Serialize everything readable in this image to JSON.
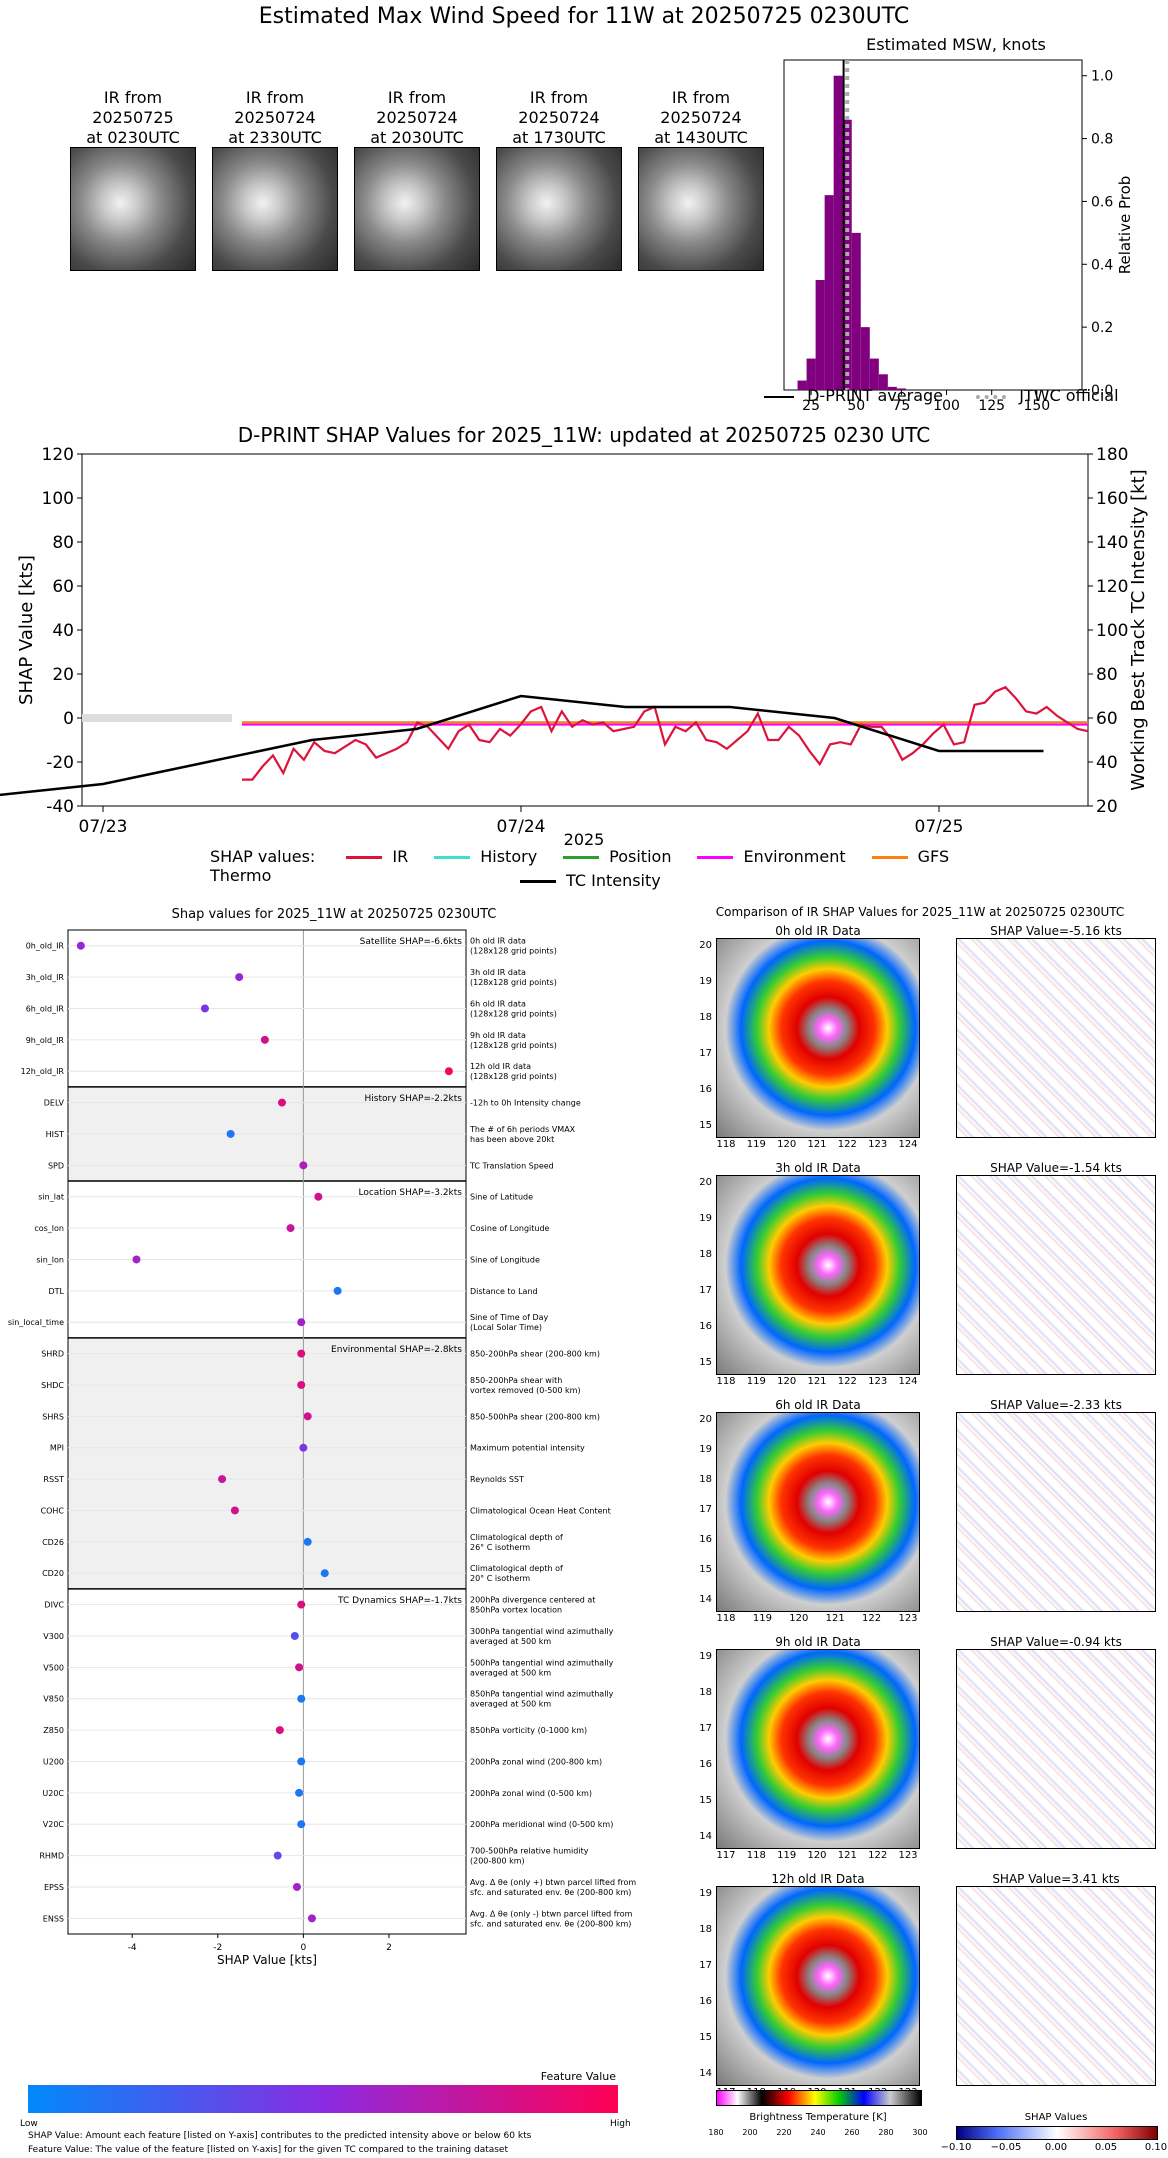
{
  "main_title": "Estimated Max Wind Speed for 11W at 20250725 0230UTC",
  "ir_thumbs": [
    {
      "line1": "IR from",
      "line2": "20250725",
      "line3": "at 0230UTC"
    },
    {
      "line1": "IR from",
      "line2": "20250724",
      "line3": "at 2330UTC"
    },
    {
      "line1": "IR from",
      "line2": "20250724",
      "line3": "at 2030UTC"
    },
    {
      "line1": "IR from",
      "line2": "20250724",
      "line3": "at 1730UTC"
    },
    {
      "line1": "IR from",
      "line2": "20250724",
      "line3": "at 1430UTC"
    }
  ],
  "msw": {
    "title": "Estimated MSW, knots",
    "ylabel": "Relative Prob",
    "legend_avg": "D-PRINT average",
    "legend_jtwc": "JTWC official",
    "xticks": [
      "25",
      "50",
      "75",
      "100",
      "125",
      "150"
    ],
    "yticks": [
      "0.0",
      "0.2",
      "0.4",
      "0.6",
      "0.8",
      "1.0"
    ]
  },
  "ts": {
    "title": "D-PRINT SHAP Values for 2025_11W: updated at 20250725 0230 UTC",
    "ylabel_left": "SHAP Value [kts]",
    "ylabel_right": "Working Best Track TC Intensity [kt]",
    "xlabel": "2025",
    "xticks": [
      "07/23",
      "07/24",
      "07/25"
    ],
    "yticks_left": [
      "120",
      "100",
      "80",
      "60",
      "40",
      "20",
      "0",
      "-20",
      "-40"
    ],
    "yticks_right": [
      "180",
      "160",
      "140",
      "120",
      "100",
      "80",
      "60",
      "40",
      "20"
    ],
    "legend_title": "SHAP values:",
    "legend_items": [
      "IR",
      "History",
      "Position",
      "Environment",
      "GFS Thermo",
      "TC Intensity"
    ]
  },
  "shap_panel": {
    "title": "Shap values for 2025_11W at 20250725 0230UTC",
    "xlabel": "SHAP Value [kts]",
    "xticks": [
      "-4",
      "-2",
      "0",
      "2"
    ],
    "group_labels": [
      "Satellite SHAP=-6.6kts",
      "History SHAP=-2.2kts",
      "Location SHAP=-3.2kts",
      "Environmental SHAP=-2.8kts",
      "TC Dynamics SHAP=-1.7kts"
    ],
    "features": [
      {
        "name": "0h_old_IR",
        "desc1": "0h old IR data",
        "desc2": "(128x128 grid points)"
      },
      {
        "name": "3h_old_IR",
        "desc1": "3h old IR data",
        "desc2": "(128x128 grid points)"
      },
      {
        "name": "6h_old_IR",
        "desc1": "6h old IR data",
        "desc2": "(128x128 grid points)"
      },
      {
        "name": "9h_old_IR",
        "desc1": "9h old IR data",
        "desc2": "(128x128 grid points)"
      },
      {
        "name": "12h_old_IR",
        "desc1": "12h old IR data",
        "desc2": "(128x128 grid points)"
      },
      {
        "name": "DELV",
        "desc1": "-12h to 0h Intensity change",
        "desc2": ""
      },
      {
        "name": "HIST",
        "desc1": "The # of 6h periods VMAX",
        "desc2": "has been above 20kt"
      },
      {
        "name": "SPD",
        "desc1": "TC Translation Speed",
        "desc2": ""
      },
      {
        "name": "sin_lat",
        "desc1": "Sine of Latitude",
        "desc2": ""
      },
      {
        "name": "cos_lon",
        "desc1": "Cosine of Longitude",
        "desc2": ""
      },
      {
        "name": "sin_lon",
        "desc1": "Sine of Longitude",
        "desc2": ""
      },
      {
        "name": "DTL",
        "desc1": "Distance to Land",
        "desc2": ""
      },
      {
        "name": "sin_local_time",
        "desc1": "Sine of Time of Day",
        "desc2": "(Local Solar Time)"
      },
      {
        "name": "SHRD",
        "desc1": "850-200hPa shear (200-800 km)",
        "desc2": ""
      },
      {
        "name": "SHDC",
        "desc1": "850-200hPa shear with",
        "desc2": "vortex removed (0-500 km)"
      },
      {
        "name": "SHRS",
        "desc1": "850-500hPa shear (200-800 km)",
        "desc2": ""
      },
      {
        "name": "MPI",
        "desc1": "Maximum potential intensity",
        "desc2": ""
      },
      {
        "name": "RSST",
        "desc1": "Reynolds SST",
        "desc2": ""
      },
      {
        "name": "COHC",
        "desc1": "Climatological Ocean Heat Content",
        "desc2": ""
      },
      {
        "name": "CD26",
        "desc1": "Climatological depth of",
        "desc2": "26° C isotherm"
      },
      {
        "name": "CD20",
        "desc1": "Climatological depth of",
        "desc2": "20° C isotherm"
      },
      {
        "name": "DIVC",
        "desc1": "200hPa divergence centered at",
        "desc2": "850hPa vortex location"
      },
      {
        "name": "V300",
        "desc1": "300hPa tangential wind azimuthally",
        "desc2": "averaged at 500 km"
      },
      {
        "name": "V500",
        "desc1": "500hPa tangential wind azimuthally",
        "desc2": "averaged at 500 km"
      },
      {
        "name": "V850",
        "desc1": "850hPa tangential wind azimuthally",
        "desc2": "averaged at 500 km"
      },
      {
        "name": "Z850",
        "desc1": "850hPa vorticity (0-1000 km)",
        "desc2": ""
      },
      {
        "name": "U200",
        "desc1": "200hPa zonal wind (200-800 km)",
        "desc2": ""
      },
      {
        "name": "U20C",
        "desc1": "200hPa zonal wind (0-500 km)",
        "desc2": ""
      },
      {
        "name": "V20C",
        "desc1": "200hPa meridional wind (0-500 km)",
        "desc2": ""
      },
      {
        "name": "RHMD",
        "desc1": "700-500hPa relative humidity",
        "desc2": "(200-800 km)"
      },
      {
        "name": "EPSS",
        "desc1": "Avg. Δ θe (only +) btwn parcel lifted from",
        "desc2": "sfc. and saturated env. θe (200-800 km)"
      },
      {
        "name": "ENSS",
        "desc1": "Avg. Δ θe (only -) btwn parcel lifted from",
        "desc2": "sfc. and saturated env. θe (200-800 km)"
      }
    ],
    "colorbar_title": "Feature Value",
    "colorbar_low": "Low",
    "colorbar_high": "High",
    "note1": "SHAP Value: Amount each feature [listed on Y-axis] contributes to the predicted intensity above or below 60 kts",
    "note2": "Feature Value: The value of the feature [listed on Y-axis] for the given TC compared to the training dataset"
  },
  "ir_compare": {
    "title": "Comparison of IR SHAP Values for 2025_11W at 20250725 0230UTC",
    "rows": [
      {
        "ir_title": "0h old IR Data",
        "shap_title": "SHAP Value=-5.16 kts",
        "yticks": [
          "20",
          "19",
          "18",
          "17",
          "16",
          "15"
        ],
        "xticks": [
          "118",
          "119",
          "120",
          "121",
          "122",
          "123",
          "124"
        ]
      },
      {
        "ir_title": "3h old IR Data",
        "shap_title": "SHAP Value=-1.54 kts",
        "yticks": [
          "20",
          "19",
          "18",
          "17",
          "16",
          "15"
        ],
        "xticks": [
          "118",
          "119",
          "120",
          "121",
          "122",
          "123",
          "124"
        ]
      },
      {
        "ir_title": "6h old IR Data",
        "shap_title": "SHAP Value=-2.33 kts",
        "yticks": [
          "20",
          "19",
          "18",
          "17",
          "16",
          "15",
          "14"
        ],
        "xticks": [
          "118",
          "119",
          "120",
          "121",
          "122",
          "123"
        ]
      },
      {
        "ir_title": "9h old IR Data",
        "shap_title": "SHAP Value=-0.94 kts",
        "yticks": [
          "19",
          "18",
          "17",
          "16",
          "15",
          "14"
        ],
        "xticks": [
          "117",
          "118",
          "119",
          "120",
          "121",
          "122",
          "123"
        ]
      },
      {
        "ir_title": "12h old IR Data",
        "shap_title": "SHAP Value=3.41 kts",
        "yticks": [
          "19",
          "18",
          "17",
          "16",
          "15",
          "14"
        ],
        "xticks": [
          "117",
          "118",
          "119",
          "120",
          "121",
          "122",
          "123"
        ]
      }
    ],
    "bt_label": "Brightness Temperature [K]",
    "bt_ticks": [
      "180",
      "200",
      "220",
      "240",
      "260",
      "280",
      "300"
    ],
    "sv_label": "SHAP Values",
    "sv_ticks": [
      "−0.10",
      "−0.05",
      "0.00",
      "0.05",
      "0.10"
    ]
  },
  "chart_data": [
    {
      "type": "bar",
      "title": "Estimated MSW, knots",
      "ylabel": "Relative Prob",
      "xlim": [
        10,
        175
      ],
      "ylim": [
        0,
        1.05
      ],
      "bin_width": 5,
      "x": [
        20,
        25,
        30,
        35,
        40,
        45,
        50,
        55,
        60,
        65,
        70,
        75
      ],
      "values": [
        0.03,
        0.1,
        0.35,
        0.62,
        1.0,
        0.86,
        0.5,
        0.2,
        0.1,
        0.05,
        0.01,
        0.005
      ],
      "d_print_average": 43,
      "jtwc_official": 45
    },
    {
      "type": "line",
      "title": "D-PRINT SHAP Values for 2025_11W: updated at 20250725 0230 UTC",
      "ylim_left": [
        -40,
        120
      ],
      "ylim_right": [
        20,
        180
      ],
      "series": [
        {
          "name": "IR",
          "values": [
            -28,
            -28,
            -22,
            -17,
            -25,
            -14,
            -19,
            -11,
            -15,
            -16,
            -13,
            -10,
            -12,
            -18,
            -16,
            -14,
            -11,
            -2,
            -4,
            -9,
            -14,
            -6,
            -3,
            -10,
            -11,
            -5,
            -8,
            -3,
            3,
            5,
            -6,
            3,
            -4,
            -1,
            -3,
            -2,
            -6,
            -5,
            -4,
            3,
            5,
            -12,
            -4,
            -6,
            -2,
            -10,
            -11,
            -14,
            -10,
            -6,
            2,
            -10,
            -10,
            -4,
            -8,
            -15,
            -21,
            -12,
            -11,
            -12,
            -3,
            -4,
            -4,
            -10,
            -19,
            -16,
            -12,
            -7,
            -3,
            -12,
            -11,
            6,
            7,
            12,
            14,
            9,
            3,
            2,
            5,
            1,
            -2,
            -5,
            -6
          ]
        },
        {
          "name": "History",
          "values": [
            -2,
            -2,
            -2,
            -2,
            -2,
            -2,
            -2,
            -2,
            -2
          ]
        },
        {
          "name": "Position",
          "values": [
            -2,
            -2,
            -2,
            -2,
            -2,
            -2,
            -2,
            -2,
            -2
          ]
        },
        {
          "name": "Environment",
          "values": [
            -3,
            -3,
            -3,
            -3,
            -3,
            -3,
            -3,
            -3,
            -3
          ]
        },
        {
          "name": "GFS Thermo",
          "values": [
            -2,
            -2,
            -2,
            -2,
            -2,
            -2,
            -2,
            -2,
            -2
          ]
        },
        {
          "name": "TC Intensity",
          "x": [
            -0.25,
            0,
            0.25,
            0.5,
            0.75,
            1,
            1.25,
            1.5,
            1.75,
            2,
            2.25
          ],
          "values": [
            25,
            30,
            40,
            50,
            55,
            70,
            65,
            65,
            60,
            45,
            45
          ]
        }
      ]
    },
    {
      "type": "scatter",
      "title": "Shap values for 2025_11W at 20250725 0230UTC",
      "xlabel": "SHAP Value [kts]",
      "xlim": [
        -5.5,
        3.8
      ],
      "points": [
        {
          "feature": "0h_old_IR",
          "shap": -5.2,
          "fv": 0.55
        },
        {
          "feature": "3h_old_IR",
          "shap": -1.5,
          "fv": 0.55
        },
        {
          "feature": "6h_old_IR",
          "shap": -2.3,
          "fv": 0.45
        },
        {
          "feature": "9h_old_IR",
          "shap": -0.9,
          "fv": 0.8
        },
        {
          "feature": "12h_old_IR",
          "shap": 3.4,
          "fv": 0.95
        },
        {
          "feature": "DELV",
          "shap": -0.5,
          "fv": 0.85
        },
        {
          "feature": "HIST",
          "shap": -1.7,
          "fv": 0.1
        },
        {
          "feature": "SPD",
          "shap": 0.0,
          "fv": 0.65
        },
        {
          "feature": "sin_lat",
          "shap": 0.35,
          "fv": 0.8
        },
        {
          "feature": "cos_lon",
          "shap": -0.3,
          "fv": 0.75
        },
        {
          "feature": "sin_lon",
          "shap": -3.9,
          "fv": 0.6
        },
        {
          "feature": "DTL",
          "shap": 0.8,
          "fv": 0.1
        },
        {
          "feature": "sin_local_time",
          "shap": -0.05,
          "fv": 0.6
        },
        {
          "feature": "SHRD",
          "shap": -0.05,
          "fv": 0.85
        },
        {
          "feature": "SHDC",
          "shap": -0.05,
          "fv": 0.85
        },
        {
          "feature": "SHRS",
          "shap": 0.1,
          "fv": 0.8
        },
        {
          "feature": "MPI",
          "shap": 0.0,
          "fv": 0.45
        },
        {
          "feature": "RSST",
          "shap": -1.9,
          "fv": 0.75
        },
        {
          "feature": "COHC",
          "shap": -1.6,
          "fv": 0.8
        },
        {
          "feature": "CD26",
          "shap": 0.1,
          "fv": 0.1
        },
        {
          "feature": "CD20",
          "shap": 0.5,
          "fv": 0.1
        },
        {
          "feature": "DIVC",
          "shap": -0.05,
          "fv": 0.85
        },
        {
          "feature": "V300",
          "shap": -0.2,
          "fv": 0.3
        },
        {
          "feature": "V500",
          "shap": -0.1,
          "fv": 0.8
        },
        {
          "feature": "V850",
          "shap": -0.05,
          "fv": 0.1
        },
        {
          "feature": "Z850",
          "shap": -0.55,
          "fv": 0.85
        },
        {
          "feature": "U200",
          "shap": -0.05,
          "fv": 0.1
        },
        {
          "feature": "U20C",
          "shap": -0.1,
          "fv": 0.1
        },
        {
          "feature": "V20C",
          "shap": -0.05,
          "fv": 0.1
        },
        {
          "feature": "RHMD",
          "shap": -0.6,
          "fv": 0.35
        },
        {
          "feature": "EPSS",
          "shap": -0.15,
          "fv": 0.6
        },
        {
          "feature": "ENSS",
          "shap": 0.2,
          "fv": 0.6
        }
      ]
    }
  ]
}
